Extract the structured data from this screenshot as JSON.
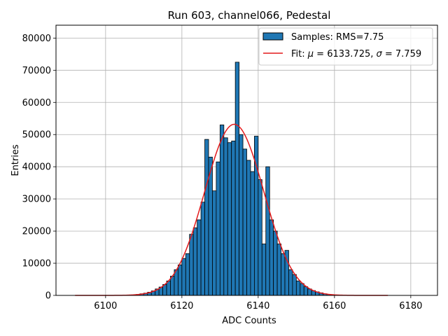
{
  "chart_data": {
    "type": "bar",
    "title": "Run 603, channel066, Pedestal",
    "xlabel": "ADC Counts",
    "ylabel": "Entries",
    "xlim": [
      6087,
      6187
    ],
    "ylim": [
      0,
      84000
    ],
    "xticks": [
      6100,
      6120,
      6140,
      6160,
      6180
    ],
    "yticks": [
      0,
      10000,
      20000,
      30000,
      40000,
      50000,
      60000,
      70000,
      80000
    ],
    "grid": true,
    "legend_position": "top-right",
    "colors": {
      "bars": "#1f77b4",
      "fit": "#e31a1c",
      "edge": "#000000"
    },
    "series": [
      {
        "name": "Samples: RMS=7.75",
        "kind": "histogram",
        "bin_width": 1,
        "bin_starts": [
          6108,
          6109,
          6110,
          6111,
          6112,
          6113,
          6114,
          6115,
          6116,
          6117,
          6118,
          6119,
          6120,
          6121,
          6122,
          6123,
          6124,
          6125,
          6126,
          6127,
          6128,
          6129,
          6130,
          6131,
          6132,
          6133,
          6134,
          6135,
          6136,
          6137,
          6138,
          6139,
          6140,
          6141,
          6142,
          6143,
          6144,
          6145,
          6146,
          6147,
          6148,
          6149,
          6150,
          6151,
          6152,
          6153,
          6154,
          6155,
          6156,
          6157,
          6158,
          6159
        ],
        "counts": [
          300,
          500,
          700,
          1000,
          1400,
          2000,
          2600,
          3400,
          4500,
          6000,
          8000,
          9500,
          11500,
          13000,
          19000,
          21000,
          23500,
          29000,
          48500,
          43000,
          32500,
          41500,
          53000,
          49000,
          47500,
          48000,
          72500,
          50000,
          45500,
          42000,
          38500,
          49500,
          36000,
          16000,
          40000,
          23500,
          20000,
          16000,
          13000,
          14000,
          8000,
          6500,
          4500,
          3700,
          2700,
          2000,
          1500,
          1100,
          800,
          500,
          300,
          200
        ]
      },
      {
        "name": "Fit: μ = 6133.725, σ = 7.759",
        "kind": "gaussian",
        "mu": 6133.725,
        "sigma": 7.759,
        "amplitude": 53200,
        "x_range": [
          6092,
          6174
        ]
      }
    ],
    "legend": {
      "samples_label": "Samples: RMS=7.75",
      "fit_prefix": "Fit: ",
      "fit_mu_sym": "μ",
      "fit_mu_val": " = 6133.725, ",
      "fit_sigma_sym": "σ",
      "fit_sigma_val": " = 7.759"
    }
  }
}
